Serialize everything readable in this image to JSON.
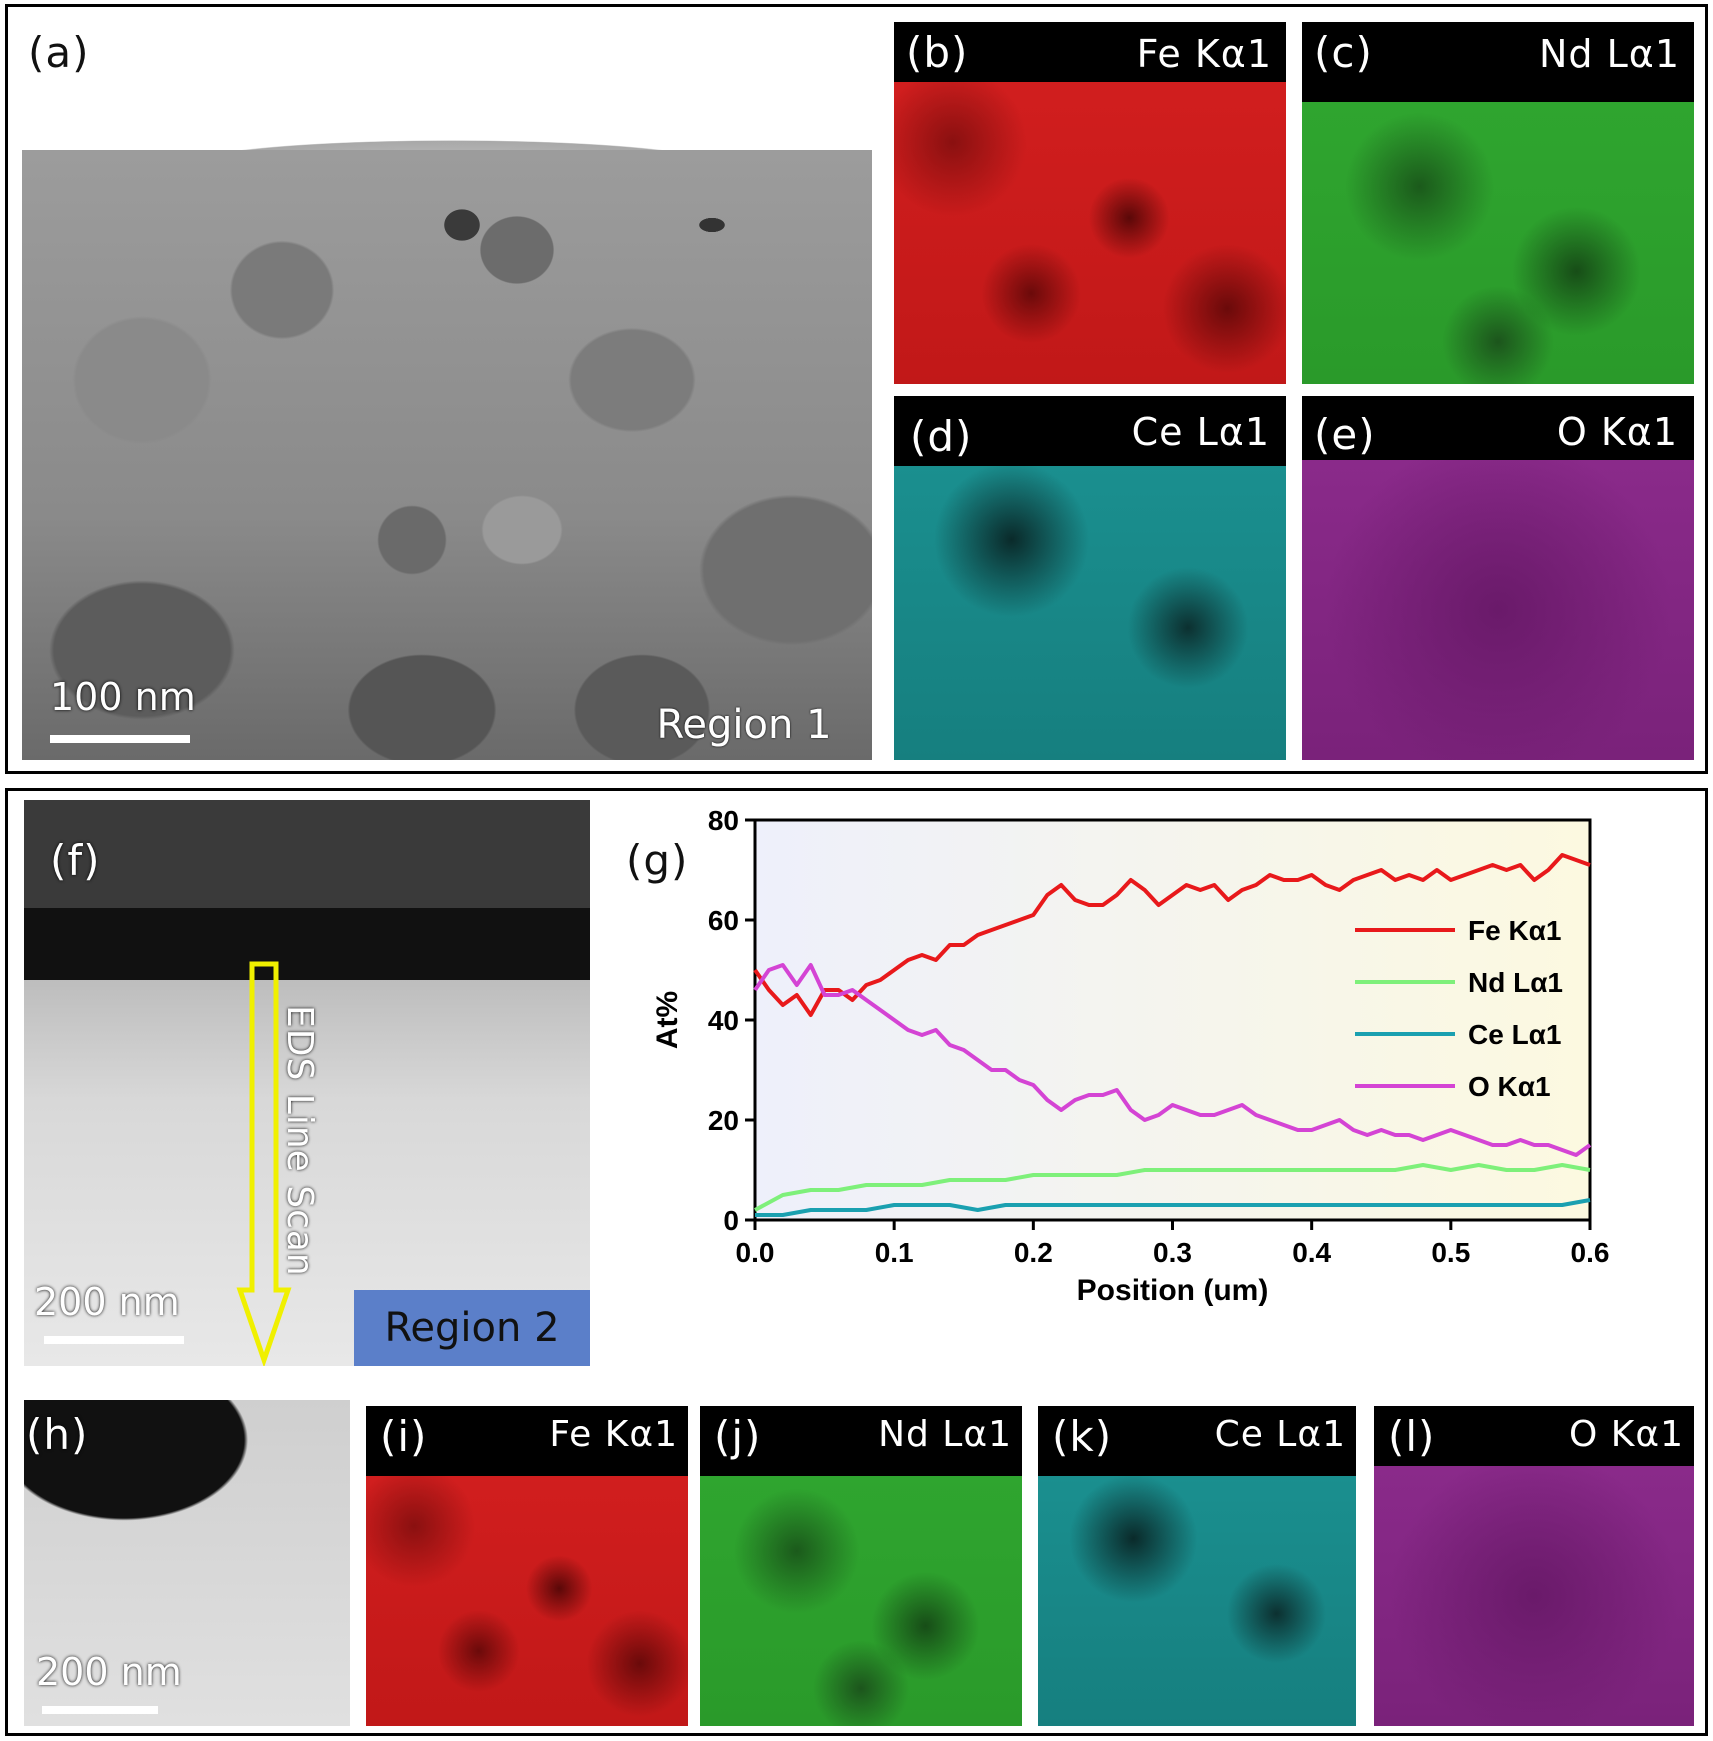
{
  "panels": {
    "a": {
      "label": "(a)",
      "scalebar": "100 nm",
      "region": "Region 1"
    },
    "b": {
      "label": "(b)",
      "element": "Fe Kα1"
    },
    "c": {
      "label": "(c)",
      "element": "Nd Lα1"
    },
    "d": {
      "label": "(d)",
      "element": "Ce Lα1"
    },
    "e": {
      "label": "(e)",
      "element": "O Kα1"
    },
    "f": {
      "label": "(f)",
      "scalebar": "200 nm",
      "region": "Region 2",
      "arrow_text": "EDS Line Scan"
    },
    "g": {
      "label": "(g)"
    },
    "h": {
      "label": "(h)",
      "scalebar": "200 nm"
    },
    "i": {
      "label": "(i)",
      "element": "Fe Kα1"
    },
    "j": {
      "label": "(j)",
      "element": "Nd Lα1"
    },
    "k": {
      "label": "(k)",
      "element": "Ce Lα1"
    },
    "l": {
      "label": "(l)",
      "element": "O Kα1"
    }
  },
  "colors": {
    "fe": "#e8191b",
    "nd": "#7ef07a",
    "ce": "#1aa0b0",
    "o": "#d444d4",
    "region1": "#b22222",
    "region2": "#5b7fc9",
    "arrow": "#f0f000"
  },
  "chart_data": {
    "type": "line",
    "xlabel": "Position (um)",
    "ylabel": "At%",
    "xlim": [
      0.0,
      0.6
    ],
    "ylim": [
      0,
      80
    ],
    "xticks": [
      "0.0",
      "0.1",
      "0.2",
      "0.3",
      "0.4",
      "0.5",
      "0.6"
    ],
    "yticks": [
      "0",
      "20",
      "40",
      "60",
      "80"
    ],
    "legend_position": "right",
    "series": [
      {
        "name": "Fe Kα1",
        "color": "#e8191b",
        "x": [
          0.0,
          0.01,
          0.02,
          0.03,
          0.04,
          0.05,
          0.06,
          0.07,
          0.08,
          0.09,
          0.1,
          0.11,
          0.12,
          0.13,
          0.14,
          0.15,
          0.16,
          0.17,
          0.18,
          0.19,
          0.2,
          0.21,
          0.22,
          0.23,
          0.24,
          0.25,
          0.26,
          0.27,
          0.28,
          0.29,
          0.3,
          0.31,
          0.32,
          0.33,
          0.34,
          0.35,
          0.36,
          0.37,
          0.38,
          0.39,
          0.4,
          0.41,
          0.42,
          0.43,
          0.44,
          0.45,
          0.46,
          0.47,
          0.48,
          0.49,
          0.5,
          0.51,
          0.52,
          0.53,
          0.54,
          0.55,
          0.56,
          0.57,
          0.58,
          0.59,
          0.6
        ],
        "y": [
          50,
          46,
          43,
          45,
          41,
          46,
          46,
          44,
          47,
          48,
          50,
          52,
          53,
          52,
          55,
          55,
          57,
          58,
          59,
          60,
          61,
          65,
          67,
          64,
          63,
          63,
          65,
          68,
          66,
          63,
          65,
          67,
          66,
          67,
          64,
          66,
          67,
          69,
          68,
          68,
          69,
          67,
          66,
          68,
          69,
          70,
          68,
          69,
          68,
          70,
          68,
          69,
          70,
          71,
          70,
          71,
          68,
          70,
          73,
          72,
          71
        ]
      },
      {
        "name": "Nd Lα1",
        "color": "#7ef07a",
        "x": [
          0.0,
          0.02,
          0.04,
          0.06,
          0.08,
          0.1,
          0.12,
          0.14,
          0.16,
          0.18,
          0.2,
          0.22,
          0.24,
          0.26,
          0.28,
          0.3,
          0.32,
          0.34,
          0.36,
          0.38,
          0.4,
          0.42,
          0.44,
          0.46,
          0.48,
          0.5,
          0.52,
          0.54,
          0.56,
          0.58,
          0.6
        ],
        "y": [
          2,
          5,
          6,
          6,
          7,
          7,
          7,
          8,
          8,
          8,
          9,
          9,
          9,
          9,
          10,
          10,
          10,
          10,
          10,
          10,
          10,
          10,
          10,
          10,
          11,
          10,
          11,
          10,
          10,
          11,
          10
        ]
      },
      {
        "name": "Ce Lα1",
        "color": "#1aa0b0",
        "x": [
          0.0,
          0.02,
          0.04,
          0.06,
          0.08,
          0.1,
          0.12,
          0.14,
          0.16,
          0.18,
          0.2,
          0.22,
          0.24,
          0.26,
          0.28,
          0.3,
          0.32,
          0.34,
          0.36,
          0.38,
          0.4,
          0.42,
          0.44,
          0.46,
          0.48,
          0.5,
          0.52,
          0.54,
          0.56,
          0.58,
          0.6
        ],
        "y": [
          1,
          1,
          2,
          2,
          2,
          3,
          3,
          3,
          2,
          3,
          3,
          3,
          3,
          3,
          3,
          3,
          3,
          3,
          3,
          3,
          3,
          3,
          3,
          3,
          3,
          3,
          3,
          3,
          3,
          3,
          4
        ]
      },
      {
        "name": "O   Kα1",
        "color": "#d444d4",
        "x": [
          0.0,
          0.01,
          0.02,
          0.03,
          0.04,
          0.05,
          0.06,
          0.07,
          0.08,
          0.09,
          0.1,
          0.11,
          0.12,
          0.13,
          0.14,
          0.15,
          0.16,
          0.17,
          0.18,
          0.19,
          0.2,
          0.21,
          0.22,
          0.23,
          0.24,
          0.25,
          0.26,
          0.27,
          0.28,
          0.29,
          0.3,
          0.31,
          0.32,
          0.33,
          0.34,
          0.35,
          0.36,
          0.37,
          0.38,
          0.39,
          0.4,
          0.41,
          0.42,
          0.43,
          0.44,
          0.45,
          0.46,
          0.47,
          0.48,
          0.49,
          0.5,
          0.51,
          0.52,
          0.53,
          0.54,
          0.55,
          0.56,
          0.57,
          0.58,
          0.59,
          0.6
        ],
        "y": [
          46,
          50,
          51,
          47,
          51,
          45,
          45,
          46,
          44,
          42,
          40,
          38,
          37,
          38,
          35,
          34,
          32,
          30,
          30,
          28,
          27,
          24,
          22,
          24,
          25,
          25,
          26,
          22,
          20,
          21,
          23,
          22,
          21,
          21,
          22,
          23,
          21,
          20,
          19,
          18,
          18,
          19,
          20,
          18,
          17,
          18,
          17,
          17,
          16,
          17,
          18,
          17,
          16,
          15,
          15,
          16,
          15,
          15,
          14,
          13,
          15
        ]
      }
    ]
  }
}
